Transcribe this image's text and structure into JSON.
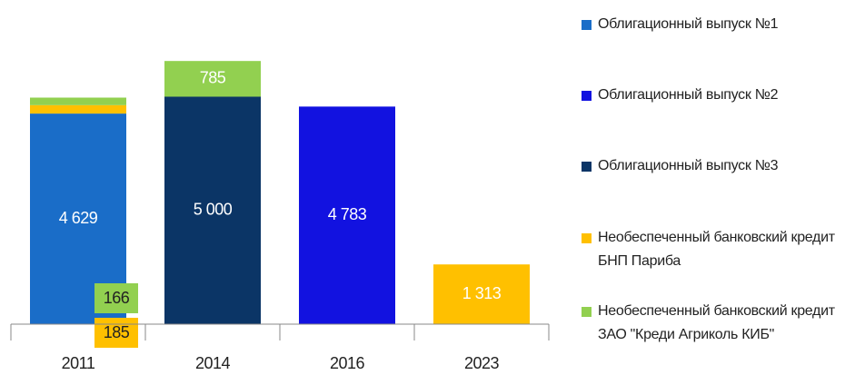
{
  "chart_data": {
    "type": "stacked_bar",
    "categories": [
      "2011",
      "2014",
      "2016",
      "2023"
    ],
    "series": [
      {
        "name": "Облигационный выпуск №1",
        "color": "#1a6dc8",
        "values": [
          4629,
          null,
          null,
          null
        ],
        "value_labels": [
          "4 629",
          null,
          null,
          null
        ]
      },
      {
        "name": "Облигационный выпуск №2",
        "color": "#1212e0",
        "values": [
          null,
          null,
          4783,
          null
        ],
        "value_labels": [
          null,
          null,
          "4 783",
          null
        ]
      },
      {
        "name": "Облигационный выпуск №3",
        "color": "#0b3566",
        "values": [
          null,
          5000,
          null,
          null
        ],
        "value_labels": [
          null,
          "5 000",
          null,
          null
        ]
      },
      {
        "name": "Необеспеченный банковский кредит БНП Париба",
        "color": "#ffc000",
        "values": [
          185,
          null,
          null,
          1313
        ],
        "value_labels": [
          "185",
          null,
          null,
          "1 313"
        ]
      },
      {
        "name": "Необеспеченный банковский кредит ЗАО \"Креди Агриколь КИБ\"",
        "color": "#92d050",
        "values": [
          166,
          785,
          null,
          null
        ]
      }
    ]
  }
}
